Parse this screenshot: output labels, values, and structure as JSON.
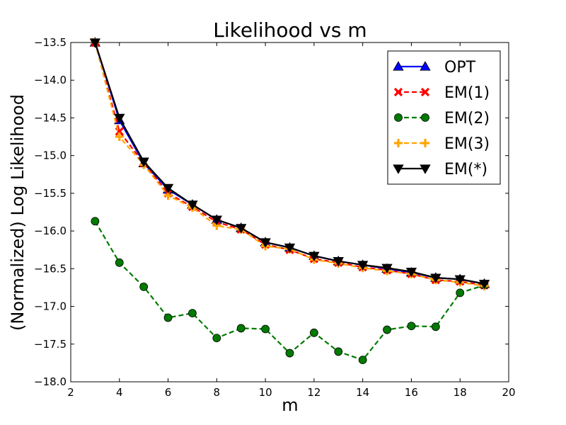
{
  "chart_data": {
    "type": "line",
    "title": "Likelihood vs m",
    "xlabel": "m",
    "ylabel": "(Normalized) Log Likelihood",
    "xlim": [
      2,
      20
    ],
    "ylim": [
      -18.0,
      -13.5
    ],
    "xticks": [
      2,
      4,
      6,
      8,
      10,
      12,
      14,
      16,
      18,
      20
    ],
    "yticks": [
      -13.5,
      -14.0,
      -14.5,
      -15.0,
      -15.5,
      -16.0,
      -16.5,
      -17.0,
      -17.5,
      -18.0
    ],
    "legend_position": "top-right",
    "x": [
      3,
      4,
      5,
      6,
      7,
      8,
      9,
      10,
      11,
      12,
      13,
      14,
      15,
      16,
      17,
      18,
      19
    ],
    "series": [
      {
        "name": "OPT",
        "color": "#0000ff",
        "marker": "triangle-up",
        "dash": "solid",
        "values": [
          -13.5,
          -14.53,
          -15.1,
          -15.45,
          -15.65,
          -15.85,
          -15.96,
          -16.15,
          -16.22,
          -16.33,
          -16.4,
          -16.45,
          -16.5,
          -16.55,
          -16.62,
          -16.64,
          -16.7
        ]
      },
      {
        "name": "EM(1)",
        "color": "#ff0000",
        "marker": "x",
        "dash": "dashed",
        "values": [
          -13.5,
          -14.68,
          -15.1,
          -15.5,
          -15.68,
          -15.88,
          -15.98,
          -16.18,
          -16.25,
          -16.37,
          -16.42,
          -16.48,
          -16.52,
          -16.57,
          -16.65,
          -16.67,
          -16.72
        ]
      },
      {
        "name": "EM(2)",
        "color": "#007a00",
        "marker": "circle",
        "dash": "dashed",
        "values": [
          -15.87,
          -16.42,
          -16.74,
          -17.15,
          -17.09,
          -17.42,
          -17.29,
          -17.3,
          -17.62,
          -17.35,
          -17.6,
          -17.71,
          -17.31,
          -17.26,
          -17.27,
          -16.82,
          -16.72
        ]
      },
      {
        "name": "EM(3)",
        "color": "#ffa500",
        "marker": "plus",
        "dash": "dashed",
        "values": [
          -13.5,
          -14.75,
          -15.12,
          -15.53,
          -15.69,
          -15.93,
          -15.98,
          -16.2,
          -16.24,
          -16.38,
          -16.43,
          -16.49,
          -16.53,
          -16.57,
          -16.65,
          -16.68,
          -16.73
        ]
      },
      {
        "name": "EM(*)",
        "color": "#000000",
        "marker": "triangle-down",
        "dash": "solid",
        "values": [
          -13.5,
          -14.5,
          -15.08,
          -15.43,
          -15.65,
          -15.85,
          -15.96,
          -16.15,
          -16.22,
          -16.33,
          -16.4,
          -16.45,
          -16.49,
          -16.54,
          -16.62,
          -16.64,
          -16.7
        ]
      }
    ]
  }
}
